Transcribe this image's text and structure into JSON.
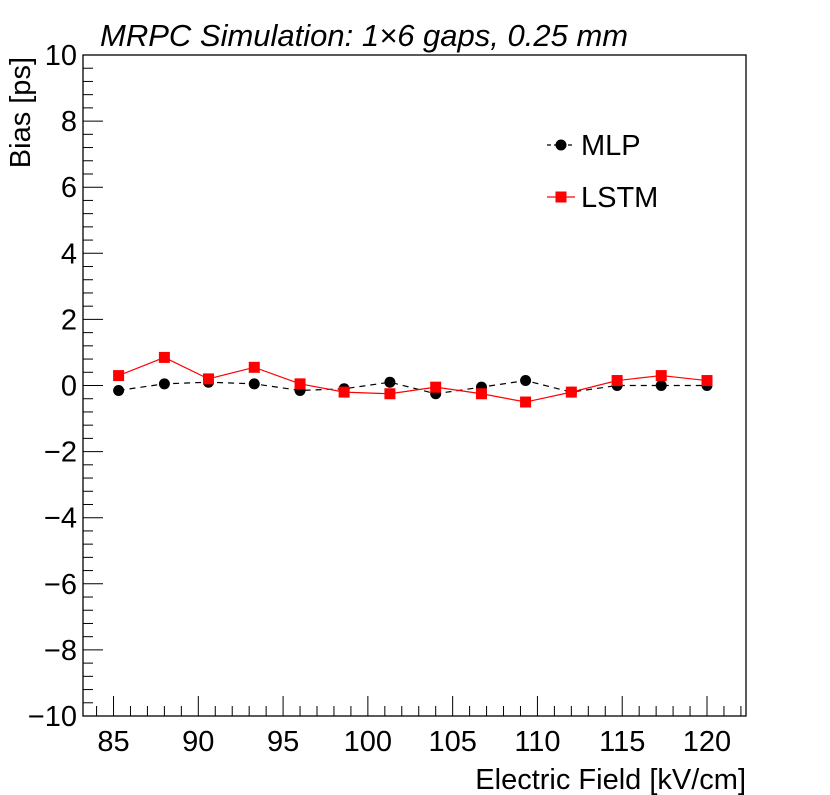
{
  "chart_data": {
    "type": "line",
    "title": "MRPC Simulation: 1×6 gaps, 0.25 mm",
    "xlabel": "Electric Field [kV/cm]",
    "ylabel": "Bias [ps]",
    "xlim": [
      83.2,
      122.3
    ],
    "ylim": [
      -10,
      10
    ],
    "x_ticks": [
      85,
      90,
      95,
      100,
      105,
      110,
      115,
      120
    ],
    "x_tick_labels": [
      "85",
      "90",
      "95",
      "100",
      "105",
      "110",
      "115",
      "120"
    ],
    "y_ticks": [
      -10,
      -8,
      -6,
      -4,
      -2,
      0,
      2,
      4,
      6,
      8,
      10
    ],
    "y_tick_labels": [
      "−10",
      "−8",
      "−6",
      "−4",
      "−2",
      "0",
      "2",
      "4",
      "6",
      "8",
      "10"
    ],
    "legend_position": "top-right",
    "series": [
      {
        "name": "MLP",
        "color": "#000000",
        "marker": "circle",
        "line_style": "dashed",
        "x": [
          85.3,
          88.0,
          90.6,
          93.3,
          96.0,
          98.6,
          101.3,
          104.0,
          106.7,
          109.3,
          112.0,
          114.7,
          117.3,
          120.0
        ],
        "y": [
          -0.15,
          0.05,
          0.1,
          0.05,
          -0.15,
          -0.1,
          0.1,
          -0.25,
          -0.05,
          0.15,
          -0.2,
          0.0,
          0.0,
          0.0
        ]
      },
      {
        "name": "LSTM",
        "color": "#ff0000",
        "marker": "square",
        "line_style": "solid",
        "x": [
          85.3,
          88.0,
          90.6,
          93.3,
          96.0,
          98.6,
          101.3,
          104.0,
          106.7,
          109.3,
          112.0,
          114.7,
          117.3,
          120.0
        ],
        "y": [
          0.3,
          0.85,
          0.2,
          0.55,
          0.05,
          -0.2,
          -0.25,
          -0.05,
          -0.25,
          -0.5,
          -0.2,
          0.15,
          0.3,
          0.15
        ]
      }
    ]
  }
}
